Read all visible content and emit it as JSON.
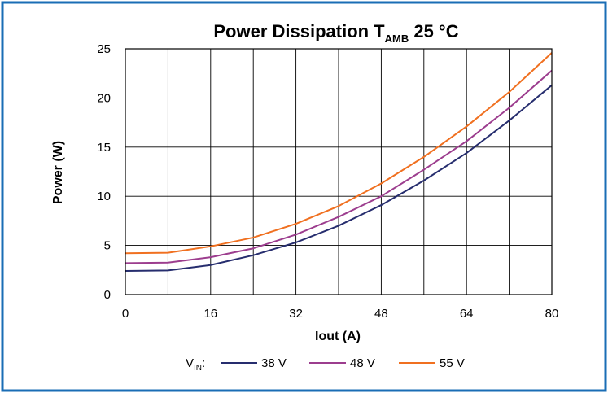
{
  "chart_data": {
    "type": "line",
    "title": {
      "prefix": "Power Dissipation T",
      "subscript": "AMB",
      "suffix": " 25 °C"
    },
    "xlabel": "Iout (A)",
    "ylabel": "Power (W)",
    "xlim": [
      0,
      80
    ],
    "ylim": [
      0,
      25
    ],
    "xticks": [
      0,
      16,
      32,
      48,
      64,
      80
    ],
    "yticks": [
      0,
      5,
      10,
      15,
      20,
      25
    ],
    "grid": true,
    "x": [
      0,
      8,
      16,
      24,
      32,
      40,
      48,
      56,
      64,
      72,
      80
    ],
    "series": [
      {
        "name": "38 V",
        "color": "#262d6e",
        "values": [
          2.4,
          2.45,
          3.0,
          4.0,
          5.3,
          7.0,
          9.1,
          11.6,
          14.4,
          17.7,
          21.3
        ]
      },
      {
        "name": "48 V",
        "color": "#9c3d8e",
        "values": [
          3.2,
          3.25,
          3.8,
          4.7,
          6.1,
          7.9,
          10.0,
          12.7,
          15.6,
          19.0,
          22.8
        ]
      },
      {
        "name": "55 V",
        "color": "#f07020",
        "values": [
          4.2,
          4.25,
          4.9,
          5.8,
          7.2,
          9.0,
          11.3,
          14.0,
          17.1,
          20.6,
          24.6
        ]
      }
    ],
    "legend": {
      "label_prefix": "V",
      "label_subscript": "IN",
      "label_suffix": ":",
      "placement": "bottom"
    }
  },
  "colors": {
    "frame_border": "#1a6db5",
    "grid": "#000000"
  }
}
